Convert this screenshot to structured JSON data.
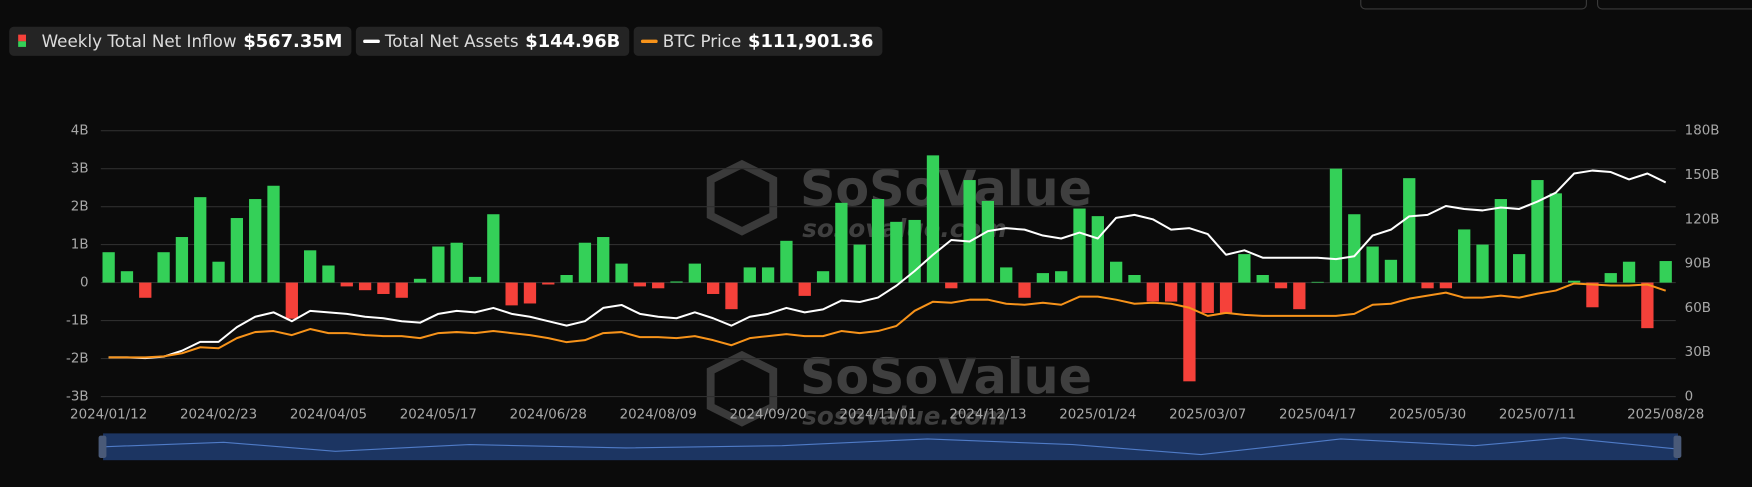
{
  "chart_data": {
    "type": "bar-line",
    "categories": [
      "2024/01/12",
      null,
      null,
      null,
      null,
      null,
      "2024/02/23",
      null,
      null,
      null,
      null,
      null,
      "2024/04/05",
      null,
      null,
      null,
      null,
      null,
      "2024/05/17",
      null,
      null,
      null,
      null,
      null,
      "2024/06/28",
      null,
      null,
      null,
      null,
      null,
      "2024/08/09",
      null,
      null,
      null,
      null,
      null,
      "2024/09/20",
      null,
      null,
      null,
      null,
      null,
      "2024/11/01",
      null,
      null,
      null,
      null,
      null,
      "2024/12/13",
      null,
      null,
      null,
      null,
      null,
      "2025/01/24",
      null,
      null,
      null,
      null,
      null,
      "2025/03/07",
      null,
      null,
      null,
      null,
      null,
      "2025/04/17",
      null,
      null,
      null,
      null,
      null,
      "2025/05/30",
      null,
      null,
      null,
      null,
      null,
      "2025/07/11",
      null,
      null,
      null,
      null,
      null,
      null,
      "2025/08/28"
    ],
    "series": [
      {
        "name": "Weekly Total Net Inflow",
        "legend_value": "$567.35M",
        "kind": "bar",
        "color": "#34d058",
        "negative_color": "#f5413a",
        "axis": "y",
        "values": [
          0.8,
          0.3,
          -0.4,
          0.8,
          1.2,
          2.25,
          0.55,
          1.7,
          2.2,
          2.55,
          -0.95,
          0.85,
          0.45,
          -0.1,
          -0.2,
          -0.3,
          -0.4,
          0.1,
          0.95,
          1.05,
          0.15,
          1.8,
          -0.6,
          -0.55,
          -0.05,
          0.2,
          1.05,
          1.2,
          0.5,
          -0.1,
          -0.15,
          0.03,
          0.5,
          -0.3,
          -0.7,
          0.4,
          0.4,
          1.1,
          -0.35,
          0.3,
          2.1,
          1.0,
          2.2,
          1.6,
          1.65,
          3.35,
          -0.15,
          2.7,
          2.15,
          0.4,
          -0.4,
          0.25,
          0.3,
          1.95,
          1.75,
          0.55,
          0.2,
          -0.5,
          -0.5,
          -2.6,
          -0.8,
          -0.8,
          0.75,
          0.2,
          -0.15,
          -0.7,
          0.02,
          3.0,
          1.8,
          0.95,
          0.6,
          2.75,
          -0.15,
          -0.15,
          1.4,
          1.0,
          2.2,
          0.75,
          2.7,
          2.35,
          0.05,
          -0.65,
          0.25,
          0.55,
          -1.2,
          0.56735
        ]
      },
      {
        "name": "Total Net Assets",
        "legend_value": "$144.96B",
        "kind": "line",
        "color": "#ffffff",
        "axis": "y2",
        "values": [
          26.5,
          26.5,
          26,
          27,
          31,
          37,
          37,
          47,
          54,
          57,
          51,
          58,
          57,
          56,
          54,
          53,
          51,
          50,
          56,
          58,
          57,
          60,
          56,
          54,
          51,
          48,
          51,
          60,
          62,
          56,
          54,
          53,
          57,
          53,
          48,
          54,
          56,
          60,
          57,
          59,
          65,
          64,
          67,
          75,
          85,
          96,
          106,
          105,
          112,
          114,
          113,
          109,
          107,
          111,
          107,
          121,
          123,
          120,
          113,
          114,
          110,
          96,
          99,
          94,
          94,
          94,
          94,
          93,
          95,
          109,
          113,
          122,
          123,
          129,
          127,
          126,
          128,
          127,
          132,
          138,
          151,
          153,
          152,
          147,
          151,
          144.96
        ]
      },
      {
        "name": "BTC Price",
        "legend_value": "$111,901.36",
        "kind": "line",
        "color": "#f7931a",
        "axis": "y3",
        "values": [
          46000,
          46000,
          46000,
          47000,
          50000,
          56000,
          55000,
          65000,
          71000,
          72000,
          68000,
          74000,
          70000,
          70000,
          68000,
          67000,
          67000,
          65000,
          70000,
          71000,
          70000,
          72000,
          70000,
          68000,
          65000,
          61000,
          63000,
          70000,
          71000,
          66000,
          66000,
          65000,
          67000,
          63000,
          58000,
          65000,
          67000,
          69000,
          67000,
          67000,
          72000,
          70000,
          72000,
          77000,
          92000,
          101000,
          100000,
          103000,
          103000,
          99000,
          98000,
          100000,
          98000,
          106000,
          106000,
          103000,
          99000,
          100000,
          99000,
          95000,
          87000,
          90000,
          88000,
          87000,
          87000,
          87000,
          87000,
          87000,
          89000,
          98000,
          99000,
          104000,
          107000,
          110000,
          105000,
          105000,
          107000,
          105000,
          109000,
          112000,
          119000,
          118000,
          117000,
          117000,
          118000,
          111901.36
        ]
      }
    ],
    "ylim": [
      -3,
      4
    ],
    "yticks": [
      {
        "value": -3,
        "label": "-3B"
      },
      {
        "value": -2,
        "label": "-2B"
      },
      {
        "value": -1,
        "label": "-1B"
      },
      0,
      {
        "value": 1,
        "label": "1B"
      },
      {
        "value": 2,
        "label": "2B"
      },
      {
        "value": 3,
        "label": "3B"
      },
      {
        "value": 4,
        "label": "4B"
      }
    ],
    "y2lim": [
      0,
      180
    ],
    "y2ticks": [
      0,
      {
        "value": 30,
        "label": "30B"
      },
      {
        "value": 60,
        "label": "60B"
      },
      {
        "value": 90,
        "label": "90B"
      },
      {
        "value": 120,
        "label": "120B"
      },
      {
        "value": 150,
        "label": "150B"
      },
      {
        "value": 180,
        "label": "180B"
      }
    ],
    "y3lim": [
      7300,
      270000
    ],
    "grid": true,
    "legend": "top-left",
    "watermark": {
      "brand": "SoSoValue",
      "site": "sosovalue.com"
    }
  }
}
